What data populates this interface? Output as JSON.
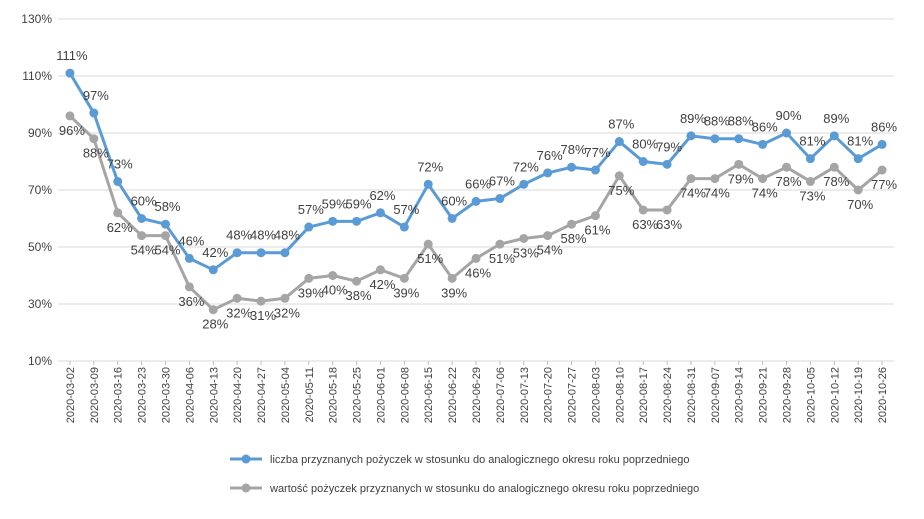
{
  "chart_data": {
    "type": "line",
    "title": "",
    "xlabel": "",
    "ylabel": "",
    "ylim": [
      10,
      130
    ],
    "y_ticks": [
      "10%",
      "30%",
      "50%",
      "70%",
      "90%",
      "110%",
      "130%"
    ],
    "y_tick_values": [
      10,
      30,
      50,
      70,
      90,
      110,
      130
    ],
    "grid": "horizontal",
    "legend_position": "bottom",
    "x": [
      "2020-03-02",
      "2020-03-09",
      "2020-03-16",
      "2020-03-23",
      "2020-03-30",
      "2020-04-06",
      "2020-04-13",
      "2020-04-20",
      "2020-04-27",
      "2020-05-04",
      "2020-05-11",
      "2020-05-18",
      "2020-05-25",
      "2020-06-01",
      "2020-06-08",
      "2020-06-15",
      "2020-06-22",
      "2020-06-29",
      "2020-07-06",
      "2020-07-13",
      "2020-07-20",
      "2020-07-27",
      "2020-08-03",
      "2020-08-10",
      "2020-08-17",
      "2020-08-24",
      "2020-08-31",
      "2020-09-07",
      "2020-09-14",
      "2020-09-21",
      "2020-09-28",
      "2020-10-05",
      "2020-10-12",
      "2020-10-19",
      "2020-10-26"
    ],
    "series": [
      {
        "name": "liczba przyznanych pożyczek w stosunku do analogicznego okresu roku poprzedniego",
        "color": "#5B9BD5",
        "values": [
          111,
          97,
          73,
          60,
          58,
          46,
          42,
          48,
          48,
          48,
          57,
          59,
          59,
          62,
          57,
          72,
          60,
          66,
          67,
          72,
          76,
          78,
          77,
          87,
          80,
          79,
          89,
          88,
          88,
          86,
          90,
          81,
          89,
          81,
          86
        ],
        "labels": [
          "111%",
          "97%",
          "73%",
          "60%",
          "58%",
          "46%",
          "42%",
          "48%",
          "48%",
          "48%",
          "57%",
          "59%",
          "59%",
          "62%",
          "57%",
          "72%",
          "60%",
          "66%",
          "67%",
          "72%",
          "76%",
          "78%",
          "77%",
          "87%",
          "80%",
          "79%",
          "89%",
          "88%",
          "88%",
          "86%",
          "90%",
          "81%",
          "89%",
          "81%",
          "86%"
        ]
      },
      {
        "name": "wartość pożyczek przyznanych w stosunku do analogicznego okresu roku poprzedniego",
        "color": "#A5A5A5",
        "values": [
          96,
          88,
          62,
          54,
          54,
          36,
          28,
          32,
          31,
          32,
          39,
          40,
          38,
          42,
          39,
          51,
          39,
          46,
          51,
          53,
          54,
          58,
          61,
          75,
          63,
          63,
          74,
          74,
          79,
          74,
          78,
          73,
          78,
          70,
          77
        ],
        "labels": [
          "96%",
          "88%",
          "62%",
          "54%",
          "54%",
          "36%",
          "28%",
          "32%",
          "31%",
          "32%",
          "39%",
          "40%",
          "38%",
          "42%",
          "39%",
          "51%",
          "39%",
          "46%",
          "51%",
          "53%",
          "54%",
          "58%",
          "61%",
          "75%",
          "63%",
          "63%",
          "74%",
          "74%",
          "79%",
          "74%",
          "78%",
          "73%",
          "78%",
          "70%",
          "77%"
        ]
      }
    ]
  }
}
